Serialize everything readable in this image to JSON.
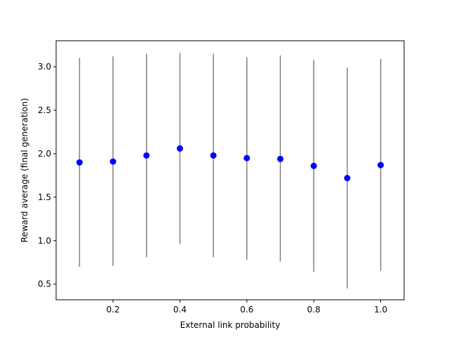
{
  "chart_data": {
    "type": "scatter",
    "title": "",
    "xlabel": "External link probability",
    "ylabel": "Reward average (final generation)",
    "xlim": [
      0.03,
      1.07
    ],
    "ylim": [
      0.32,
      3.3
    ],
    "xticks": [
      0.2,
      0.4,
      0.6,
      0.8,
      1.0
    ],
    "xtick_labels": [
      "0.2",
      "0.4",
      "0.6",
      "0.8",
      "1.0"
    ],
    "yticks": [
      0.5,
      1.0,
      1.5,
      2.0,
      2.5,
      3.0
    ],
    "ytick_labels": [
      "0.5",
      "1.0",
      "1.5",
      "2.0",
      "2.5",
      "3.0"
    ],
    "grid": false,
    "legend": "none",
    "marker_color": "#0000ff",
    "errorbar_color": "#808080",
    "series": [
      {
        "x": [
          0.1,
          0.2,
          0.3,
          0.4,
          0.5,
          0.6,
          0.7,
          0.8,
          0.9,
          1.0
        ],
        "y": [
          1.9,
          1.91,
          1.98,
          2.06,
          1.98,
          1.95,
          1.94,
          1.86,
          1.72,
          1.87
        ],
        "y_low": [
          0.7,
          0.71,
          0.81,
          0.96,
          0.81,
          0.78,
          0.76,
          0.64,
          0.45,
          0.65
        ],
        "y_high": [
          3.1,
          3.12,
          3.15,
          3.16,
          3.15,
          3.11,
          3.13,
          3.08,
          2.99,
          3.09
        ]
      }
    ]
  }
}
